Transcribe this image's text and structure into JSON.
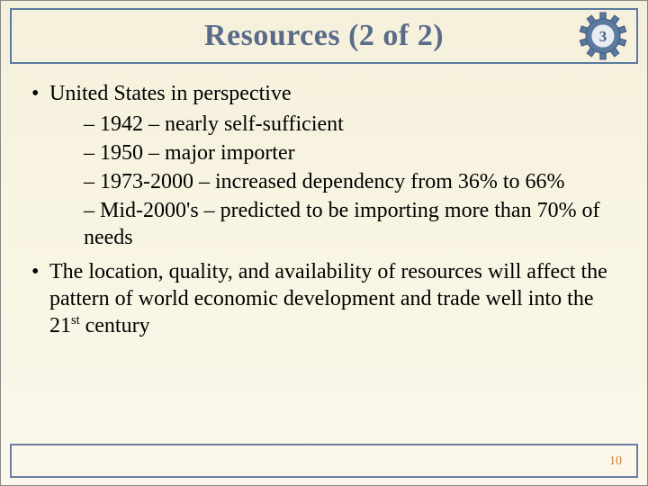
{
  "title": "Resources (2 of 2)",
  "badge": {
    "number": "3",
    "gear_fill": "#5b7aa0",
    "gear_stroke": "#425a7d",
    "center_fill": "#e8edf4",
    "text_color": "#4a5f82"
  },
  "colors": {
    "slide_bg_top": "#f5f0dc",
    "slide_bg_bottom": "#fbf8eb",
    "title_border": "#5b7aa0",
    "title_text": "#5a6b8a",
    "body_text": "#000000",
    "page_num": "#c97f3a",
    "bottom_border": "#6b7fa3"
  },
  "typography": {
    "title_fontsize": 34,
    "body_fontsize": 24,
    "page_num_fontsize": 14
  },
  "bullets": [
    {
      "text": "United States in perspective",
      "sub": [
        "1942 – nearly self-sufficient",
        "1950 – major importer",
        "1973-2000 – increased dependency from 36% to 66%",
        "Mid-2000's – predicted to be importing more than 70% of needs"
      ]
    },
    {
      "text_html": "The location, quality, and availability of resources will affect the pattern of world economic development and trade well into the 21<sup class=\"ord\">st</sup> century",
      "text": "The location, quality, and availability of resources will affect the pattern of world economic development and trade well into the 21st century",
      "sub": []
    }
  ],
  "page_number": "10"
}
